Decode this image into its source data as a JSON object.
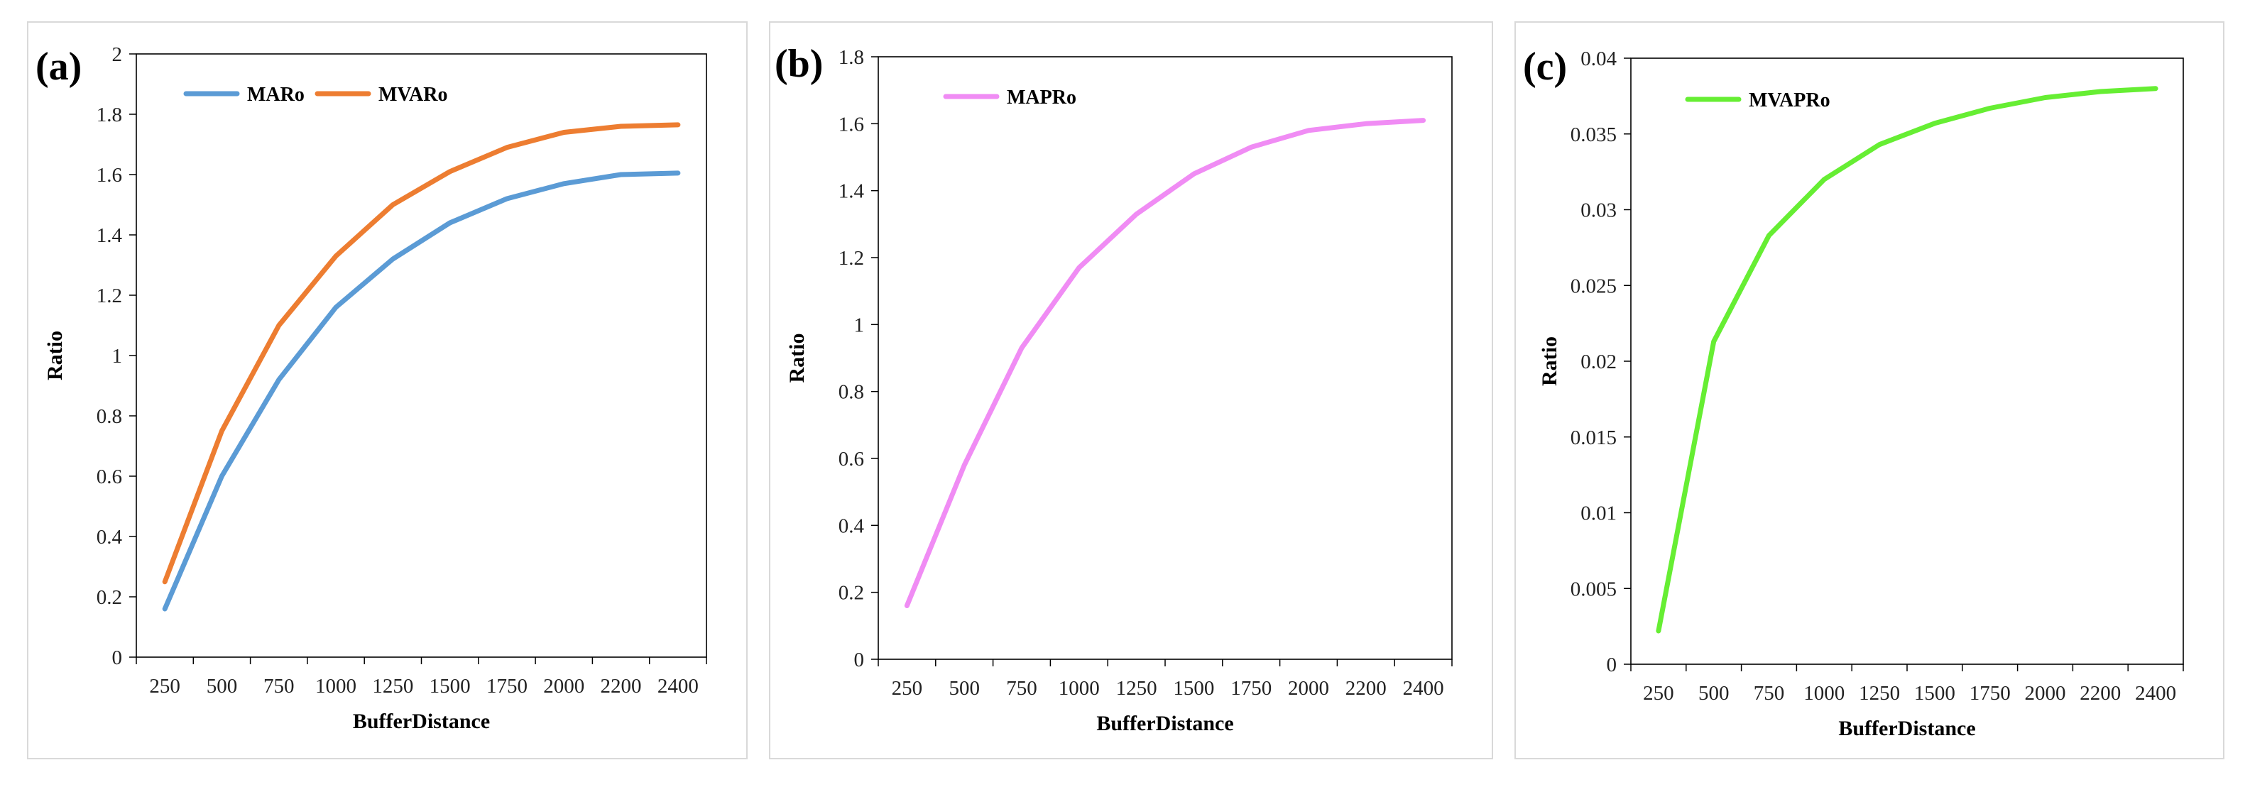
{
  "chart_data": [
    {
      "panel_label": "(a)",
      "type": "line",
      "x": [
        250,
        500,
        750,
        1000,
        1250,
        1500,
        1750,
        2000,
        2200,
        2400
      ],
      "series": [
        {
          "name": "MARo",
          "color": "#5b9bd5",
          "values": [
            0.16,
            0.6,
            0.92,
            1.16,
            1.32,
            1.44,
            1.52,
            1.57,
            1.6,
            1.605
          ]
        },
        {
          "name": "MVARo",
          "color": "#ed7d31",
          "values": [
            0.25,
            0.75,
            1.1,
            1.33,
            1.5,
            1.61,
            1.69,
            1.74,
            1.76,
            1.765
          ]
        }
      ],
      "xlabel": "BufferDistance",
      "ylabel": "Ratio",
      "ylim": [
        0,
        2
      ],
      "yticks": [
        "0",
        "0.2",
        "0.4",
        "0.6",
        "0.8",
        "1",
        "1.2",
        "1.4",
        "1.6",
        "1.8",
        "2"
      ],
      "grid": false,
      "legend": "top-left"
    },
    {
      "panel_label": "(b)",
      "type": "line",
      "x": [
        250,
        500,
        750,
        1000,
        1250,
        1500,
        1750,
        2000,
        2200,
        2400
      ],
      "series": [
        {
          "name": "MAPRo",
          "color": "#f08cf4",
          "values": [
            0.16,
            0.58,
            0.93,
            1.17,
            1.33,
            1.45,
            1.53,
            1.58,
            1.6,
            1.61
          ]
        }
      ],
      "xlabel": "BufferDistance",
      "ylabel": "Ratio",
      "ylim": [
        0,
        1.8
      ],
      "yticks": [
        "0",
        "0.2",
        "0.4",
        "0.6",
        "0.8",
        "1",
        "1.2",
        "1.4",
        "1.6",
        "1.8"
      ],
      "grid": false,
      "legend": "top-left"
    },
    {
      "panel_label": "(c)",
      "type": "line",
      "x": [
        250,
        500,
        750,
        1000,
        1250,
        1500,
        1750,
        2000,
        2200,
        2400
      ],
      "series": [
        {
          "name": "MVAPRo",
          "color": "#66ee33",
          "values": [
            0.0022,
            0.0213,
            0.0283,
            0.032,
            0.0343,
            0.0357,
            0.0367,
            0.0374,
            0.0378,
            0.038
          ]
        }
      ],
      "xlabel": "BufferDistance",
      "ylabel": "Ratio",
      "ylim": [
        0,
        0.04
      ],
      "yticks": [
        "0",
        "0.005",
        "0.01",
        "0.015",
        "0.02",
        "0.025",
        "0.03",
        "0.035",
        "0.04"
      ],
      "grid": false,
      "legend": "top-left"
    }
  ]
}
